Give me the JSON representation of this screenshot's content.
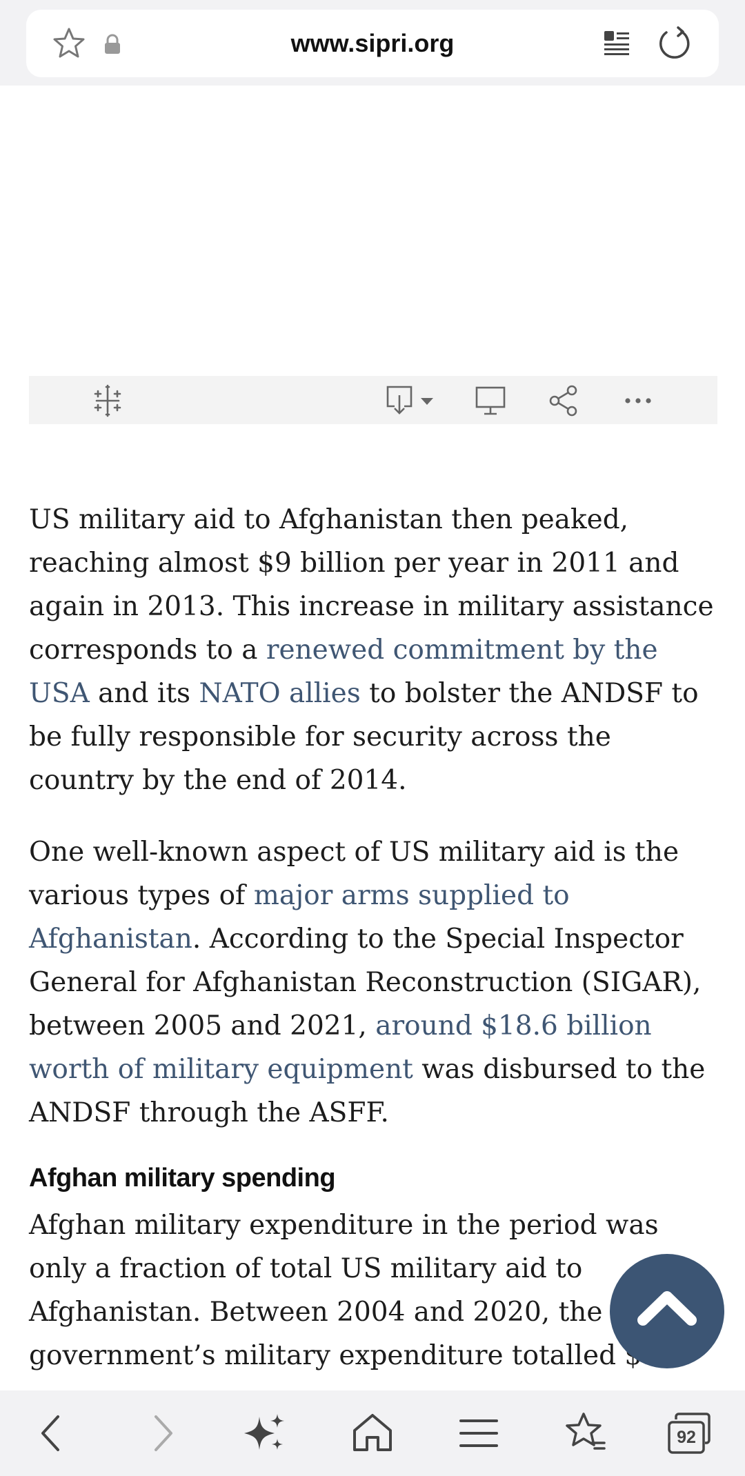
{
  "browser": {
    "url": "www.sipri.org",
    "tab_count": "92",
    "icons": {
      "bookmark": "star-outline-icon",
      "secure": "lock-icon",
      "reader": "reader-mode-icon",
      "reload": "reload-icon"
    }
  },
  "viz_toolbar": {
    "icons": [
      "tableau-logo-icon",
      "download-icon",
      "present-fullscreen-icon",
      "share-icon",
      "more-icon"
    ]
  },
  "article": {
    "p1": {
      "t1": "US military aid to Afghanistan then peaked, reaching almost $9 billion per year in 2011 and again in 2013. This increase in military assistance corresponds to a ",
      "l1": "renewed commitment by the USA",
      "t2": " and its ",
      "l2": "NATO allies",
      "t3": " to bolster the ANDSF to be fully responsible for security across the country by the end of 2014."
    },
    "p2": {
      "t1": "One well-known aspect of US military aid is the various types of ",
      "l1": "major arms supplied to Afghanistan",
      "t2": ". According to the Special Inspector General for Afghanistan Reconstruction (SIGAR), between 2005 and 2021, ",
      "l2": "around $18.6 billion worth of military equipment",
      "t3": " was disbursed to the ANDSF through the ASFF."
    },
    "heading": "Afghan military spending",
    "p3": {
      "t1": "Afghan military expenditure in the period was only a fraction of total US military aid to Afghanistan. Between 2004 and 2020, the Afghan government’s military expenditure totalled $6.7"
    }
  },
  "colors": {
    "link": "#3f5673",
    "fab": "#3c5574",
    "bar_bg": "#f2f2f4"
  }
}
